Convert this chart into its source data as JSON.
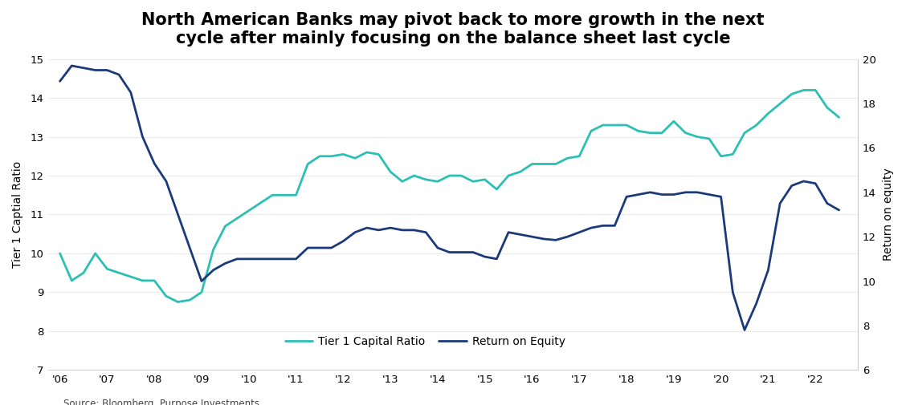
{
  "title": "North American Banks may pivot back to more growth in the next\ncycle after mainly focusing on the balance sheet last cycle",
  "source": "Source: Bloomberg, Purpose Investments",
  "ylabel_left": "Tier 1 Captial Ratio",
  "ylabel_right": "Return on equity",
  "ylim_left": [
    7,
    15
  ],
  "ylim_right": [
    6,
    20
  ],
  "yticks_left": [
    7,
    8,
    9,
    10,
    11,
    12,
    13,
    14,
    15
  ],
  "yticks_right": [
    6,
    8,
    10,
    12,
    14,
    16,
    18,
    20
  ],
  "xtick_labels": [
    "'06",
    "'07",
    "'08",
    "'09",
    "'10",
    "'11",
    "'12",
    "'13",
    "'14",
    "'15",
    "'16",
    "'17",
    "'18",
    "'19",
    "'20",
    "'21",
    "'22"
  ],
  "color_tier1": "#2CBFB3",
  "color_roe": "#1B3A7A",
  "legend_tier1": "Tier 1 Capital Ratio",
  "legend_roe": "Return on Equity",
  "tier1_x": [
    2006.0,
    2006.25,
    2006.5,
    2006.75,
    2007.0,
    2007.25,
    2007.5,
    2007.75,
    2008.0,
    2008.25,
    2008.5,
    2008.75,
    2009.0,
    2009.25,
    2009.5,
    2009.75,
    2010.0,
    2010.25,
    2010.5,
    2010.75,
    2011.0,
    2011.25,
    2011.5,
    2011.75,
    2012.0,
    2012.25,
    2012.5,
    2012.75,
    2013.0,
    2013.25,
    2013.5,
    2013.75,
    2014.0,
    2014.25,
    2014.5,
    2014.75,
    2015.0,
    2015.25,
    2015.5,
    2015.75,
    2016.0,
    2016.25,
    2016.5,
    2016.75,
    2017.0,
    2017.25,
    2017.5,
    2017.75,
    2018.0,
    2018.25,
    2018.5,
    2018.75,
    2019.0,
    2019.25,
    2019.5,
    2019.75,
    2020.0,
    2020.25,
    2020.5,
    2020.75,
    2021.0,
    2021.25,
    2021.5,
    2021.75,
    2022.0,
    2022.25,
    2022.5
  ],
  "tier1_y": [
    10.0,
    9.3,
    9.5,
    10.0,
    9.6,
    9.5,
    9.4,
    9.3,
    9.3,
    8.9,
    8.75,
    8.8,
    9.0,
    10.1,
    10.7,
    10.9,
    11.1,
    11.3,
    11.5,
    11.5,
    11.5,
    12.3,
    12.5,
    12.5,
    12.55,
    12.45,
    12.6,
    12.55,
    12.1,
    11.85,
    12.0,
    11.9,
    11.85,
    12.0,
    12.0,
    11.85,
    11.9,
    11.65,
    12.0,
    12.1,
    12.3,
    12.3,
    12.3,
    12.45,
    12.5,
    13.15,
    13.3,
    13.3,
    13.3,
    13.15,
    13.1,
    13.1,
    13.4,
    13.1,
    13.0,
    12.95,
    12.5,
    12.55,
    13.1,
    13.3,
    13.6,
    13.85,
    14.1,
    14.2,
    14.2,
    13.75,
    13.5
  ],
  "roe_x": [
    2006.0,
    2006.25,
    2006.5,
    2006.75,
    2007.0,
    2007.25,
    2007.5,
    2007.75,
    2008.0,
    2008.25,
    2008.5,
    2008.75,
    2009.0,
    2009.25,
    2009.5,
    2009.75,
    2010.0,
    2010.25,
    2010.5,
    2010.75,
    2011.0,
    2011.25,
    2011.5,
    2011.75,
    2012.0,
    2012.25,
    2012.5,
    2012.75,
    2013.0,
    2013.25,
    2013.5,
    2013.75,
    2014.0,
    2014.25,
    2014.5,
    2014.75,
    2015.0,
    2015.25,
    2015.5,
    2015.75,
    2016.0,
    2016.25,
    2016.5,
    2016.75,
    2017.0,
    2017.25,
    2017.5,
    2017.75,
    2018.0,
    2018.25,
    2018.5,
    2018.75,
    2019.0,
    2019.25,
    2019.5,
    2019.75,
    2020.0,
    2020.25,
    2020.5,
    2020.75,
    2021.0,
    2021.25,
    2021.5,
    2021.75,
    2022.0,
    2022.25,
    2022.5
  ],
  "roe_y": [
    19.0,
    19.7,
    19.6,
    19.5,
    19.5,
    19.3,
    18.5,
    16.5,
    15.3,
    14.5,
    13.0,
    11.5,
    10.0,
    10.5,
    10.8,
    11.0,
    11.0,
    11.0,
    11.0,
    11.0,
    11.0,
    11.5,
    11.5,
    11.5,
    11.8,
    12.2,
    12.4,
    12.3,
    12.4,
    12.3,
    12.3,
    12.2,
    11.5,
    11.3,
    11.3,
    11.3,
    11.1,
    11.0,
    12.2,
    12.1,
    12.0,
    11.9,
    11.85,
    12.0,
    12.2,
    12.4,
    12.5,
    12.5,
    13.8,
    13.9,
    14.0,
    13.9,
    13.9,
    14.0,
    14.0,
    13.9,
    13.8,
    9.5,
    7.8,
    9.0,
    10.5,
    13.5,
    14.3,
    14.5,
    14.4,
    13.5,
    13.2
  ],
  "background_color": "#FFFFFF",
  "line_width": 2.0,
  "title_fontsize": 15,
  "axis_fontsize": 10,
  "tick_fontsize": 9.5,
  "source_fontsize": 8.5
}
